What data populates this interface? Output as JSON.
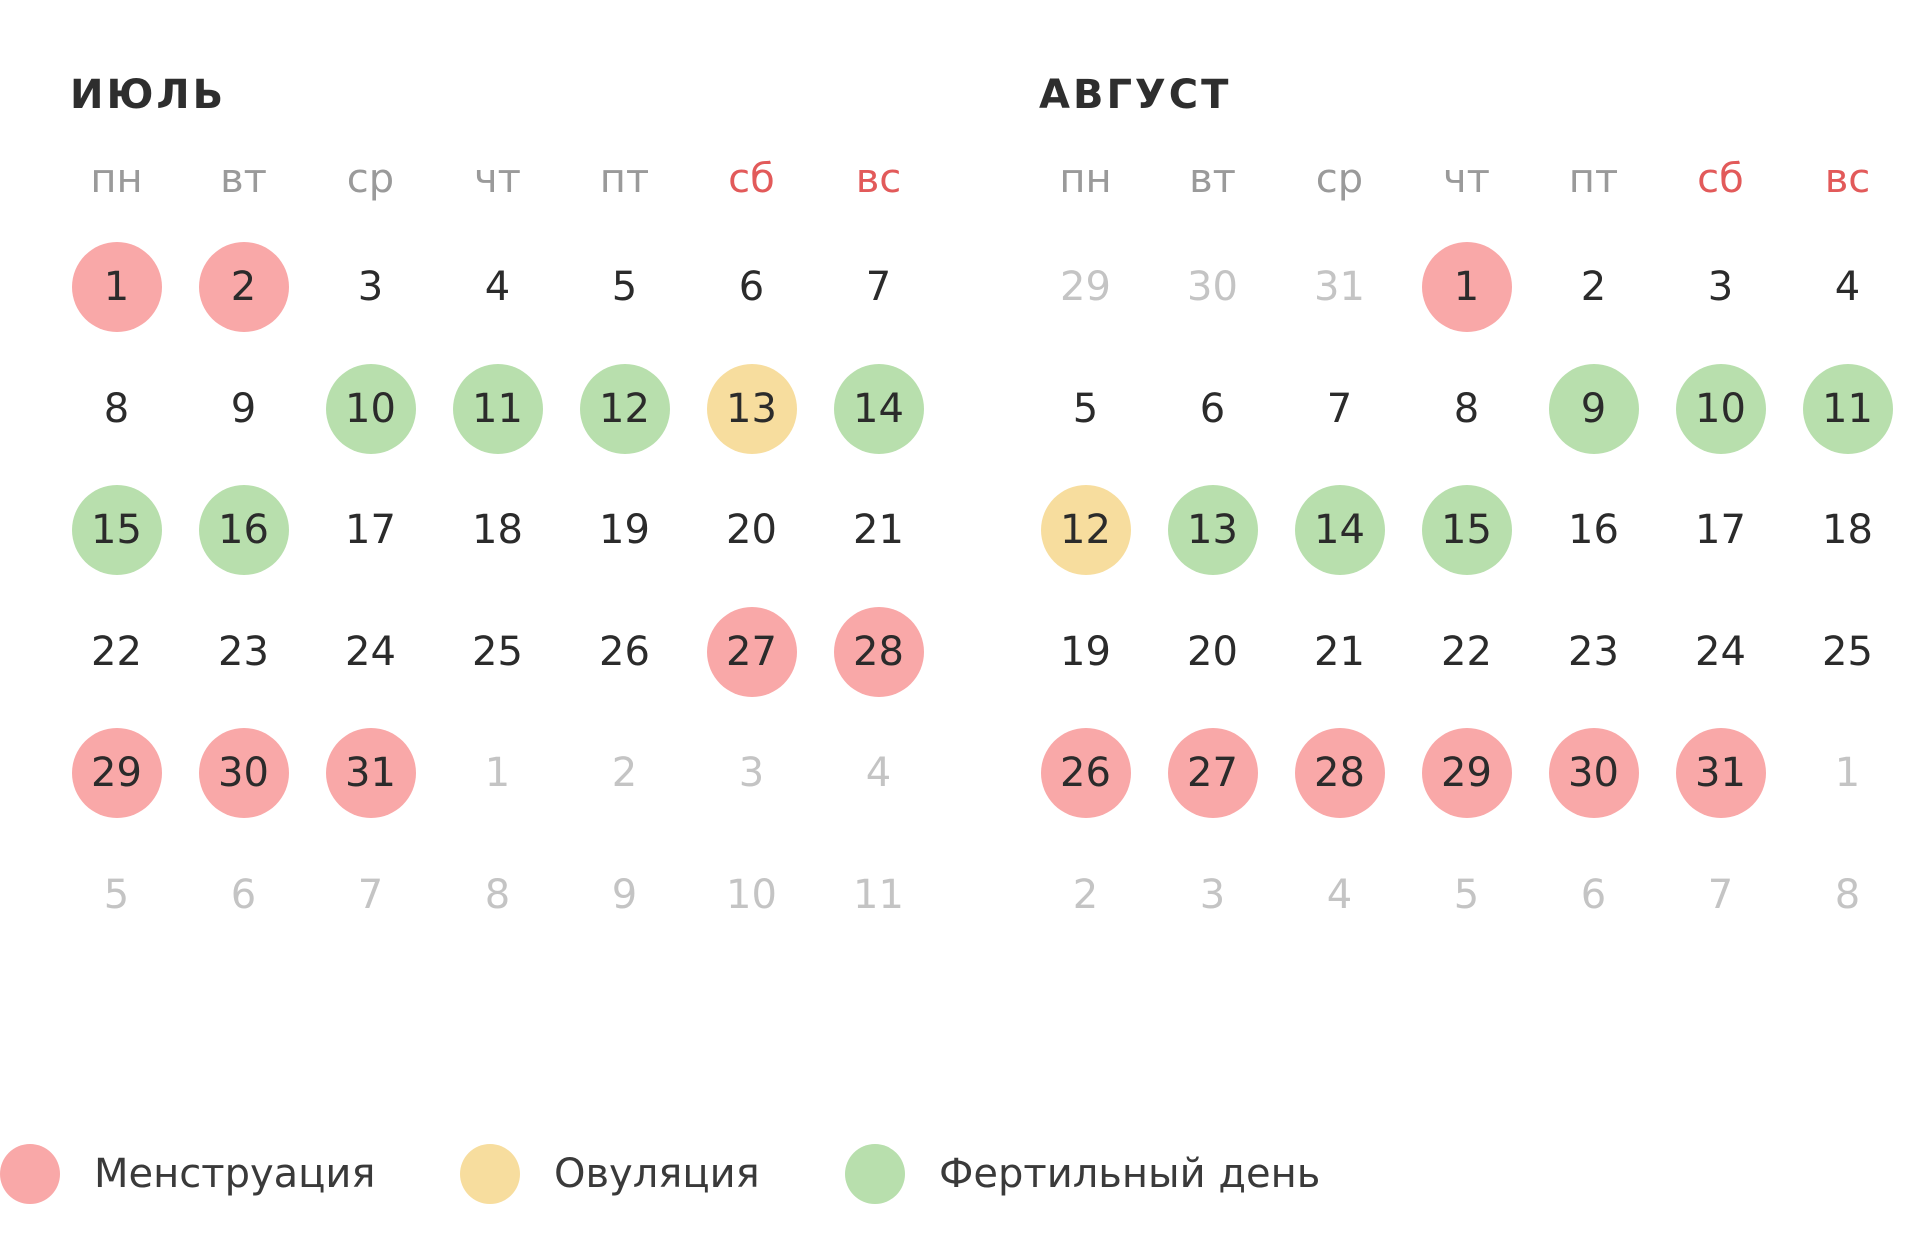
{
  "colors": {
    "menstruation": "#f9a8a8",
    "ovulation": "#f7dd9e",
    "fertile": "#b8dfad",
    "weekend_text": "#e25a5a",
    "weekday_text": "#9a9a9a",
    "muted_day": "#c4c4c4",
    "day_text": "#2b2b2b"
  },
  "weekdays": [
    {
      "label": "пн",
      "weekend": false
    },
    {
      "label": "вт",
      "weekend": false
    },
    {
      "label": "ср",
      "weekend": false
    },
    {
      "label": "чт",
      "weekend": false
    },
    {
      "label": "пт",
      "weekend": false
    },
    {
      "label": "сб",
      "weekend": true
    },
    {
      "label": "вс",
      "weekend": true
    }
  ],
  "months": [
    {
      "key": "july",
      "title": "ИЮЛЬ",
      "weeks": [
        [
          {
            "d": "1",
            "s": "menstruation"
          },
          {
            "d": "2",
            "s": "menstruation"
          },
          {
            "d": "3",
            "s": ""
          },
          {
            "d": "4",
            "s": ""
          },
          {
            "d": "5",
            "s": ""
          },
          {
            "d": "6",
            "s": ""
          },
          {
            "d": "7",
            "s": ""
          }
        ],
        [
          {
            "d": "8",
            "s": ""
          },
          {
            "d": "9",
            "s": ""
          },
          {
            "d": "10",
            "s": "fertile"
          },
          {
            "d": "11",
            "s": "fertile"
          },
          {
            "d": "12",
            "s": "fertile"
          },
          {
            "d": "13",
            "s": "ovulation"
          },
          {
            "d": "14",
            "s": "fertile"
          }
        ],
        [
          {
            "d": "15",
            "s": "fertile"
          },
          {
            "d": "16",
            "s": "fertile"
          },
          {
            "d": "17",
            "s": ""
          },
          {
            "d": "18",
            "s": ""
          },
          {
            "d": "19",
            "s": ""
          },
          {
            "d": "20",
            "s": ""
          },
          {
            "d": "21",
            "s": ""
          }
        ],
        [
          {
            "d": "22",
            "s": ""
          },
          {
            "d": "23",
            "s": ""
          },
          {
            "d": "24",
            "s": ""
          },
          {
            "d": "25",
            "s": ""
          },
          {
            "d": "26",
            "s": ""
          },
          {
            "d": "27",
            "s": "menstruation"
          },
          {
            "d": "28",
            "s": "menstruation"
          }
        ],
        [
          {
            "d": "29",
            "s": "menstruation"
          },
          {
            "d": "30",
            "s": "menstruation"
          },
          {
            "d": "31",
            "s": "menstruation"
          },
          {
            "d": "1",
            "s": "muted"
          },
          {
            "d": "2",
            "s": "muted"
          },
          {
            "d": "3",
            "s": "muted"
          },
          {
            "d": "4",
            "s": "muted"
          }
        ],
        [
          {
            "d": "5",
            "s": "muted"
          },
          {
            "d": "6",
            "s": "muted"
          },
          {
            "d": "7",
            "s": "muted"
          },
          {
            "d": "8",
            "s": "muted"
          },
          {
            "d": "9",
            "s": "muted"
          },
          {
            "d": "10",
            "s": "muted"
          },
          {
            "d": "11",
            "s": "muted"
          }
        ]
      ]
    },
    {
      "key": "august",
      "title": "АВГУСТ",
      "weeks": [
        [
          {
            "d": "29",
            "s": "muted"
          },
          {
            "d": "30",
            "s": "muted"
          },
          {
            "d": "31",
            "s": "muted"
          },
          {
            "d": "1",
            "s": "menstruation"
          },
          {
            "d": "2",
            "s": ""
          },
          {
            "d": "3",
            "s": ""
          },
          {
            "d": "4",
            "s": ""
          }
        ],
        [
          {
            "d": "5",
            "s": ""
          },
          {
            "d": "6",
            "s": ""
          },
          {
            "d": "7",
            "s": ""
          },
          {
            "d": "8",
            "s": ""
          },
          {
            "d": "9",
            "s": "fertile"
          },
          {
            "d": "10",
            "s": "fertile"
          },
          {
            "d": "11",
            "s": "fertile"
          }
        ],
        [
          {
            "d": "12",
            "s": "ovulation"
          },
          {
            "d": "13",
            "s": "fertile"
          },
          {
            "d": "14",
            "s": "fertile"
          },
          {
            "d": "15",
            "s": "fertile"
          },
          {
            "d": "16",
            "s": ""
          },
          {
            "d": "17",
            "s": ""
          },
          {
            "d": "18",
            "s": ""
          }
        ],
        [
          {
            "d": "19",
            "s": ""
          },
          {
            "d": "20",
            "s": ""
          },
          {
            "d": "21",
            "s": ""
          },
          {
            "d": "22",
            "s": ""
          },
          {
            "d": "23",
            "s": ""
          },
          {
            "d": "24",
            "s": ""
          },
          {
            "d": "25",
            "s": ""
          }
        ],
        [
          {
            "d": "26",
            "s": "menstruation"
          },
          {
            "d": "27",
            "s": "menstruation"
          },
          {
            "d": "28",
            "s": "menstruation"
          },
          {
            "d": "29",
            "s": "menstruation"
          },
          {
            "d": "30",
            "s": "menstruation"
          },
          {
            "d": "31",
            "s": "menstruation"
          },
          {
            "d": "1",
            "s": "muted"
          }
        ],
        [
          {
            "d": "2",
            "s": "muted"
          },
          {
            "d": "3",
            "s": "muted"
          },
          {
            "d": "4",
            "s": "muted"
          },
          {
            "d": "5",
            "s": "muted"
          },
          {
            "d": "6",
            "s": "muted"
          },
          {
            "d": "7",
            "s": "muted"
          },
          {
            "d": "8",
            "s": "muted"
          }
        ]
      ]
    }
  ],
  "legend": [
    {
      "key": "menstruation",
      "label": "Менструация"
    },
    {
      "key": "ovulation",
      "label": "Овуляция"
    },
    {
      "key": "fertile",
      "label": "Фертильный день"
    }
  ]
}
